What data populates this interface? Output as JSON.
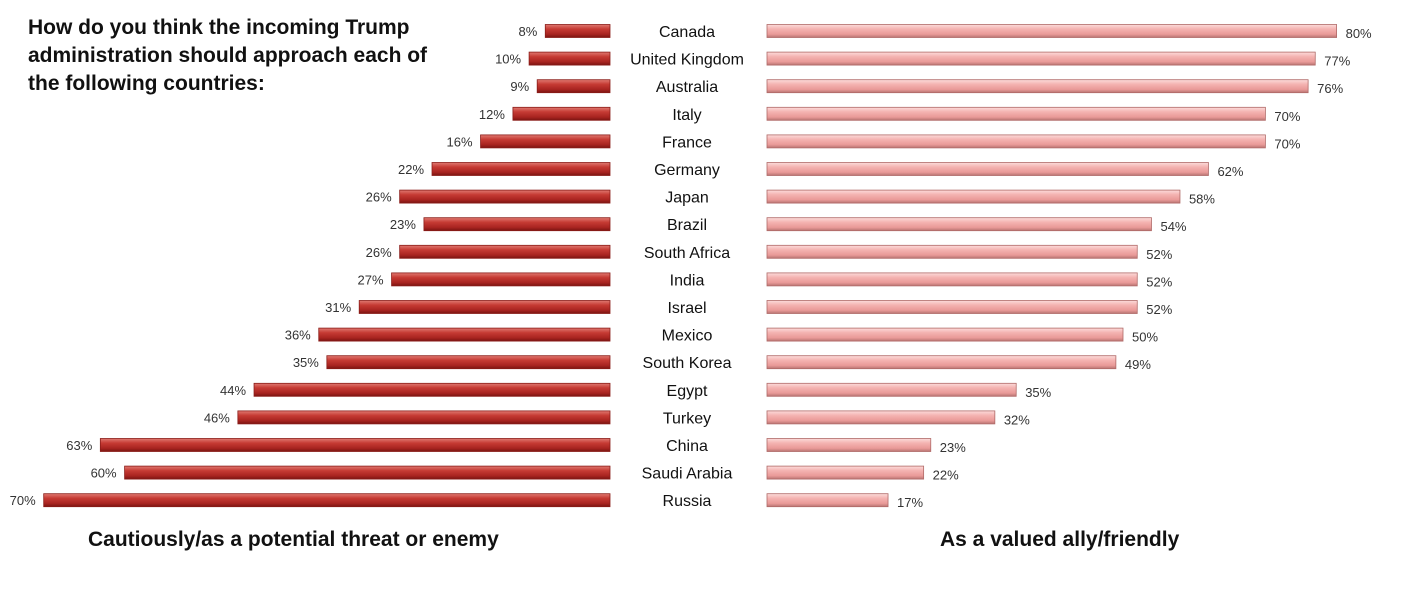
{
  "chart_data": {
    "type": "bar",
    "orientation": "horizontal-diverging",
    "title": "How do you think the incoming Trump administration should approach each of the following countries:",
    "categories": [
      "Canada",
      "United Kingdom",
      "Australia",
      "Italy",
      "France",
      "Germany",
      "Japan",
      "Brazil",
      "South Africa",
      "India",
      "Israel",
      "Mexico",
      "South Korea",
      "Egypt",
      "Turkey",
      "China",
      "Saudi Arabia",
      "Russia"
    ],
    "series": [
      {
        "name": "Cautiously/as a potential threat or enemy",
        "side": "left",
        "color": "#b32e2a",
        "values": [
          8,
          10,
          9,
          12,
          16,
          22,
          26,
          23,
          26,
          27,
          31,
          36,
          35,
          44,
          46,
          63,
          60,
          70
        ]
      },
      {
        "name": "As a valued ally/friendly",
        "side": "right",
        "color": "#f2a9a8",
        "values": [
          80,
          77,
          76,
          70,
          70,
          62,
          58,
          54,
          52,
          52,
          52,
          50,
          49,
          35,
          32,
          23,
          22,
          17
        ]
      }
    ],
    "value_suffix": "%",
    "xlabel_left": "Cautiously/as a potential threat or enemy",
    "xlabel_right": "As a valued ally/friendly",
    "xlim": [
      0,
      100
    ],
    "grid": false,
    "legend": "none"
  }
}
